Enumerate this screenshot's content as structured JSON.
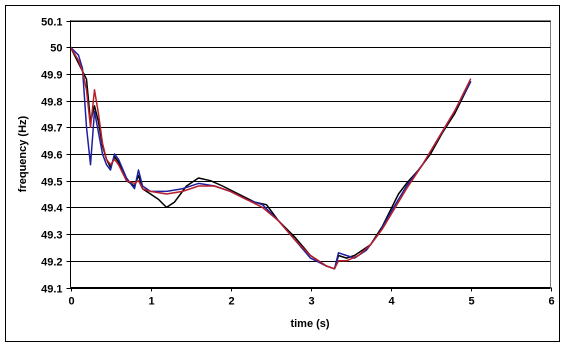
{
  "chart_data": {
    "type": "line",
    "title": "",
    "xlabel": "time (s)",
    "ylabel": "frequency (Hz)",
    "xlim": [
      0,
      6
    ],
    "ylim": [
      49.1,
      50.1
    ],
    "x_ticks": [
      "0",
      "1",
      "2",
      "3",
      "4",
      "5",
      "6"
    ],
    "y_ticks": [
      "49.1",
      "49.2",
      "49.3",
      "49.4",
      "49.5",
      "49.6",
      "49.7",
      "49.8",
      "49.9",
      "50",
      "50.1"
    ],
    "grid": "horizontal",
    "legend": "none",
    "series": [
      {
        "color": "#000000",
        "x": [
          0,
          0.1,
          0.2,
          0.25,
          0.3,
          0.35,
          0.4,
          0.45,
          0.5,
          0.55,
          0.6,
          0.7,
          0.8,
          0.85,
          0.9,
          1.0,
          1.1,
          1.2,
          1.3,
          1.45,
          1.6,
          1.75,
          1.9,
          2.1,
          2.3,
          2.45,
          2.6,
          2.8,
          3.0,
          3.2,
          3.3,
          3.35,
          3.45,
          3.55,
          3.65,
          3.75,
          3.9,
          4.0,
          4.1,
          4.2,
          4.35,
          4.5,
          4.65,
          4.8,
          5.0
        ],
        "y": [
          50.0,
          49.94,
          49.88,
          49.72,
          49.78,
          49.72,
          49.63,
          49.58,
          49.55,
          49.59,
          49.57,
          49.5,
          49.48,
          49.52,
          49.47,
          49.45,
          49.43,
          49.4,
          49.42,
          49.48,
          49.51,
          49.5,
          49.48,
          49.45,
          49.42,
          49.41,
          49.35,
          49.29,
          49.22,
          49.18,
          49.17,
          49.22,
          49.21,
          49.22,
          49.24,
          49.26,
          49.33,
          49.39,
          49.45,
          49.49,
          49.54,
          49.6,
          49.68,
          49.75,
          49.87
        ]
      },
      {
        "color": "#1f1fa0",
        "x": [
          0,
          0.1,
          0.15,
          0.2,
          0.25,
          0.3,
          0.35,
          0.4,
          0.45,
          0.5,
          0.55,
          0.6,
          0.7,
          0.8,
          0.85,
          0.9,
          1.0,
          1.2,
          1.4,
          1.6,
          1.8,
          2.0,
          2.2,
          2.4,
          2.6,
          2.8,
          3.0,
          3.2,
          3.3,
          3.35,
          3.45,
          3.55,
          3.7,
          3.85,
          4.0,
          4.2,
          4.4,
          4.6,
          4.8,
          5.0
        ],
        "y": [
          50.0,
          49.97,
          49.92,
          49.7,
          49.56,
          49.76,
          49.68,
          49.6,
          49.56,
          49.54,
          49.6,
          49.58,
          49.51,
          49.47,
          49.54,
          49.48,
          49.46,
          49.46,
          49.47,
          49.49,
          49.48,
          49.46,
          49.43,
          49.41,
          49.35,
          49.28,
          49.21,
          49.18,
          49.17,
          49.23,
          49.22,
          49.21,
          49.24,
          49.3,
          49.38,
          49.48,
          49.56,
          49.66,
          49.76,
          49.87
        ]
      },
      {
        "color": "#b81f2a",
        "x": [
          0,
          0.1,
          0.15,
          0.2,
          0.25,
          0.3,
          0.35,
          0.4,
          0.45,
          0.5,
          0.55,
          0.6,
          0.7,
          0.8,
          0.85,
          0.9,
          1.0,
          1.2,
          1.4,
          1.6,
          1.8,
          2.0,
          2.2,
          2.4,
          2.6,
          2.8,
          3.0,
          3.2,
          3.3,
          3.35,
          3.45,
          3.6,
          3.75,
          3.9,
          4.0,
          4.2,
          4.4,
          4.6,
          4.8,
          5.0
        ],
        "y": [
          50.0,
          49.95,
          49.91,
          49.84,
          49.7,
          49.84,
          49.75,
          49.64,
          49.58,
          49.56,
          49.58,
          49.56,
          49.5,
          49.49,
          49.5,
          49.47,
          49.46,
          49.45,
          49.46,
          49.48,
          49.48,
          49.46,
          49.43,
          49.4,
          49.35,
          49.28,
          49.22,
          49.18,
          49.17,
          49.2,
          49.2,
          49.22,
          49.26,
          49.32,
          49.37,
          49.47,
          49.56,
          49.66,
          49.76,
          49.88
        ]
      }
    ]
  }
}
